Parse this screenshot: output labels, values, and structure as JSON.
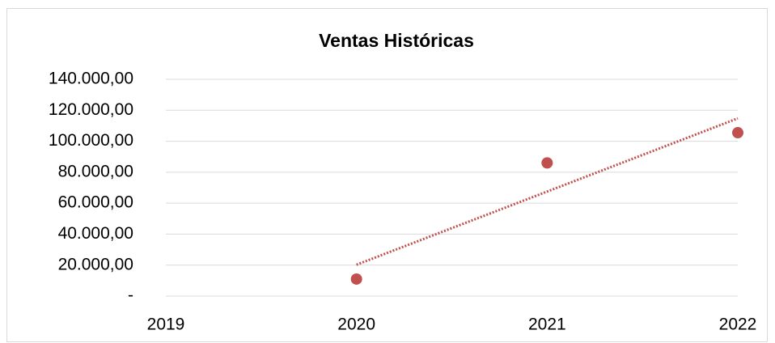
{
  "chart_data": {
    "type": "scatter",
    "title": "Ventas Históricas",
    "x": [
      2020,
      2021,
      2022
    ],
    "series": [
      {
        "color": "#c0504d",
        "values": [
          11000,
          86000,
          105500
        ]
      }
    ],
    "trendline": {
      "type": "linear",
      "color": "#c0504d"
    },
    "xlim": [
      2019,
      2022
    ],
    "xticks": [
      2019,
      2020,
      2021,
      2022
    ],
    "ylim": [
      0,
      140000
    ],
    "yticks": [
      {
        "value": 0,
        "label": "-"
      },
      {
        "value": 20000,
        "label": "20.000,00"
      },
      {
        "value": 40000,
        "label": "40.000,00"
      },
      {
        "value": 60000,
        "label": "60.000,00"
      },
      {
        "value": 80000,
        "label": "80.000,00"
      },
      {
        "value": 100000,
        "label": "100.000,00"
      },
      {
        "value": 120000,
        "label": "120.000,00"
      },
      {
        "value": 140000,
        "label": "140.000,00"
      }
    ],
    "grid": true
  }
}
